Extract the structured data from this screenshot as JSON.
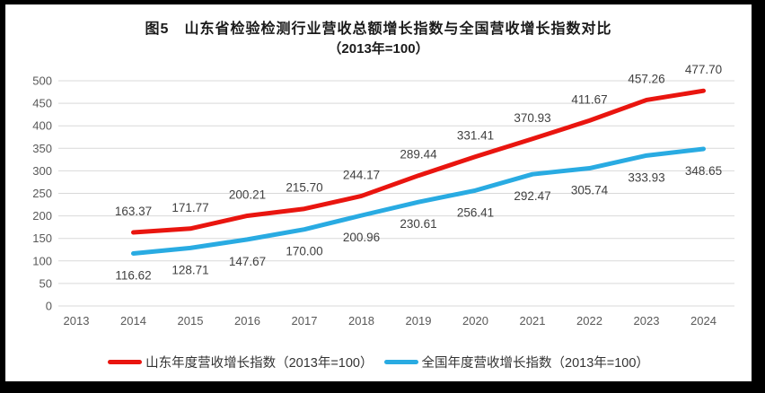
{
  "title": {
    "line1": "图5　山东省检验检测行业营收总额增长指数与全国营收增长指数对比",
    "line2": "（2013年=100）"
  },
  "chart_data": {
    "type": "line",
    "title": "图5　山东省检验检测行业营收总额增长指数与全国营收增长指数对比",
    "subtitle": "（2013年=100）",
    "categories": [
      "2013",
      "2014",
      "2015",
      "2016",
      "2017",
      "2018",
      "2019",
      "2020",
      "2021",
      "2022",
      "2023",
      "2024"
    ],
    "series": [
      {
        "name": "山东年度营收增长指数（2013年=100）",
        "color": "#e9150f",
        "start_year": "2014",
        "values": [
          163.37,
          171.77,
          200.21,
          215.7,
          244.17,
          289.44,
          331.41,
          370.93,
          411.67,
          457.26,
          477.7
        ]
      },
      {
        "name": "全国年度营收增长指数（2013年=100）",
        "color": "#29abe2",
        "start_year": "2014",
        "values": [
          116.62,
          128.71,
          147.67,
          170.0,
          200.96,
          230.61,
          256.41,
          292.47,
          305.74,
          333.93,
          348.65
        ]
      }
    ],
    "ylim": [
      0,
      500
    ],
    "ytick_step": 50,
    "yticks": [
      0,
      50,
      100,
      150,
      200,
      250,
      300,
      350,
      400,
      450,
      500
    ],
    "grid": true,
    "legend_position": "bottom",
    "data_labels": true
  },
  "colors": {
    "shandong_line": "#e9150f",
    "national_line": "#29abe2",
    "gridline": "#d9d9d9",
    "tick_text": "#595959",
    "label_text": "#404040",
    "frame": "#000000",
    "panel": "#ffffff"
  }
}
